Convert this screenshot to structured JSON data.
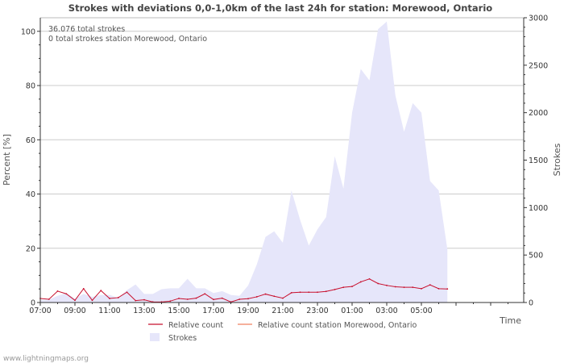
{
  "chart_data": {
    "type": "area",
    "title": "Strokes with deviations 0,0-1,0km of the last 24h for station: Morewood, Ontario",
    "ylabel_left": "Percent   [%]",
    "ylabel_right": "Strokes",
    "xlabel": "Time",
    "ylim_left": [
      0,
      105
    ],
    "ylim_right": [
      0,
      3000
    ],
    "yticks_left": [
      "0",
      "20",
      "40",
      "60",
      "80",
      "100"
    ],
    "yticks_right": [
      "0",
      "500",
      "1000",
      "1500",
      "2000",
      "2500",
      "3000"
    ],
    "x_tick_labels": [
      "07:00",
      "09:00",
      "11:00",
      "13:00",
      "15:00",
      "17:00",
      "19:00",
      "21:00",
      "23:00",
      "01:00",
      "03:00",
      "05:00"
    ],
    "annotations": [
      "36.076 total strokes",
      "0 total strokes station Morewood, Ontario"
    ],
    "legend": {
      "relative": "Relative count",
      "station": "Relative count station Morewood, Ontario",
      "strokes": "Strokes"
    },
    "hours": [
      0,
      0.5,
      1,
      1.5,
      2,
      2.5,
      3,
      3.5,
      4,
      4.5,
      5,
      5.5,
      6,
      6.5,
      7,
      7.5,
      8,
      8.5,
      9,
      9.5,
      10,
      10.5,
      11,
      11.5,
      12,
      12.5,
      13,
      13.5,
      14,
      14.5,
      15,
      15.5,
      16,
      16.5,
      17,
      17.5,
      18,
      18.5,
      19,
      19.5,
      20,
      20.5,
      21,
      21.5,
      22,
      22.5,
      23,
      23.5
    ],
    "series": [
      {
        "name": "Strokes",
        "axis": "right",
        "color": "#e6e6fa",
        "values": [
          30,
          30,
          70,
          100,
          40,
          90,
          60,
          80,
          80,
          50,
          130,
          190,
          90,
          90,
          140,
          150,
          150,
          250,
          150,
          150,
          100,
          120,
          80,
          70,
          180,
          400,
          690,
          750,
          630,
          1180,
          870,
          600,
          770,
          900,
          1540,
          1200,
          2000,
          2460,
          2340,
          2880,
          2960,
          2180,
          1800,
          2100,
          2000,
          1280,
          1180,
          560
        ]
      },
      {
        "name": "Relative count",
        "axis": "left",
        "color": "#c8102e",
        "values": [
          1.5,
          1.2,
          4.2,
          3.2,
          0.8,
          5.1,
          0.8,
          4.4,
          1.5,
          1.8,
          3.8,
          0.7,
          1,
          0.2,
          0.2,
          0.5,
          1.5,
          1.2,
          1.6,
          3.2,
          1.1,
          1.6,
          0.2,
          1.2,
          1.4,
          2.1,
          3.1,
          2.3,
          1.6,
          3.6,
          3.8,
          3.8,
          3.8,
          4.1,
          4.8,
          5.6,
          5.9,
          7.6,
          8.7,
          7,
          6.3,
          5.8,
          5.6,
          5.6,
          5.1,
          6.5,
          5.1,
          5
        ]
      },
      {
        "name": "Relative count station Morewood, Ontario",
        "axis": "left",
        "color": "#f08060",
        "values": []
      }
    ],
    "watermark": "www.lightningmaps.org"
  }
}
